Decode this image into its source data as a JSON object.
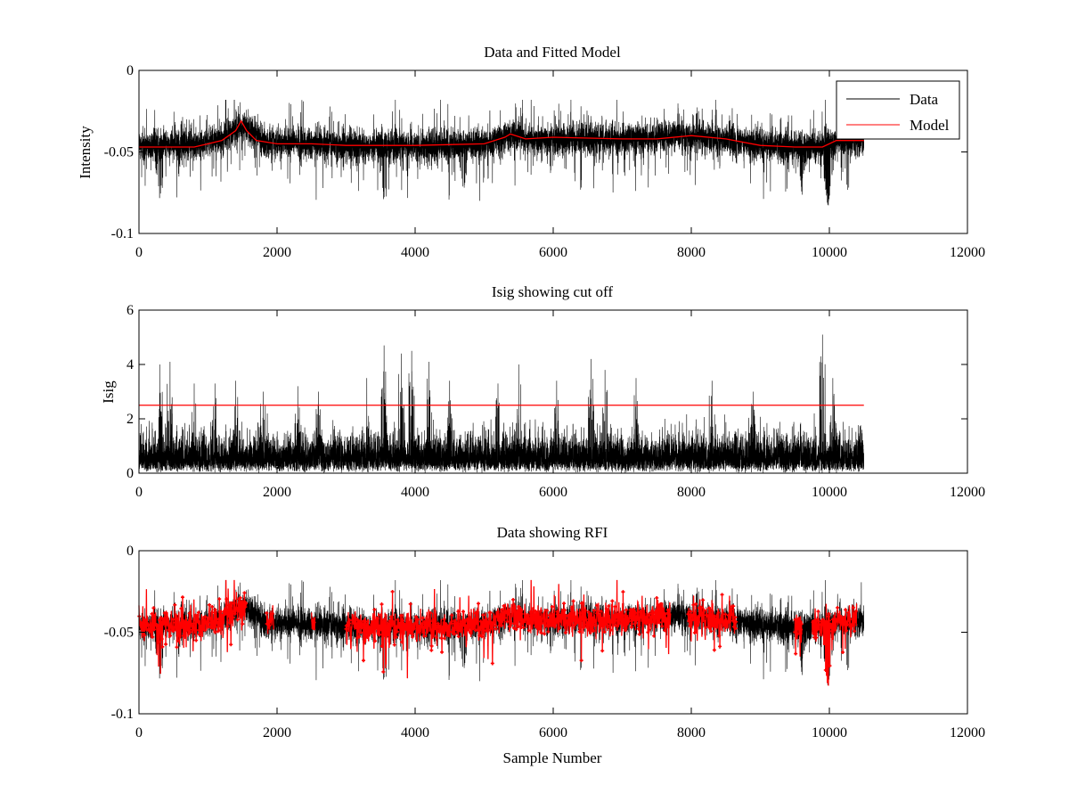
{
  "colors": {
    "data": "#000000",
    "model": "#ff0000",
    "rfi": "#ff0000",
    "axis": "#000000",
    "background": "#ffffff"
  },
  "chart_data": [
    {
      "type": "line",
      "title": "Data and Fitted Model",
      "xlabel": "",
      "ylabel": "Intensity",
      "xlim": [
        0,
        12000
      ],
      "ylim": [
        -0.1,
        0
      ],
      "xticks": [
        0,
        2000,
        4000,
        6000,
        8000,
        10000,
        12000
      ],
      "xtick_labels": [
        "0",
        "2000",
        "4000",
        "6000",
        "8000",
        "10000",
        "12000"
      ],
      "yticks": [
        -0.1,
        -0.05,
        0
      ],
      "ytick_labels": [
        "-0.1",
        "-0.05",
        "0"
      ],
      "legend": {
        "placement": "top-right",
        "entries": [
          {
            "name": "Data",
            "color": "#000000"
          },
          {
            "name": "Model",
            "color": "#ff0000"
          }
        ]
      },
      "series": [
        {
          "name": "Data",
          "kind": "noisy-trace",
          "color": "#000000",
          "n_samples": 10500,
          "baseline": [
            [
              0,
              -0.046
            ],
            [
              800,
              -0.046
            ],
            [
              1200,
              -0.042
            ],
            [
              1500,
              -0.033
            ],
            [
              1800,
              -0.044
            ],
            [
              2500,
              -0.045
            ],
            [
              3000,
              -0.046
            ],
            [
              4000,
              -0.047
            ],
            [
              5000,
              -0.045
            ],
            [
              5400,
              -0.039
            ],
            [
              5800,
              -0.042
            ],
            [
              7000,
              -0.042
            ],
            [
              8000,
              -0.04
            ],
            [
              9000,
              -0.046
            ],
            [
              9800,
              -0.047
            ],
            [
              10100,
              -0.043
            ],
            [
              10500,
              -0.043
            ]
          ],
          "spread": 0.006,
          "dips": [
            [
              300,
              -0.08
            ],
            [
              3550,
              -0.083
            ],
            [
              9980,
              -0.085
            ],
            [
              4700,
              -0.078
            ],
            [
              9600,
              -0.075
            ]
          ]
        },
        {
          "name": "Model",
          "kind": "line",
          "color": "#ff0000",
          "x": [
            0,
            800,
            1000,
            1200,
            1400,
            1480,
            1560,
            1700,
            2000,
            2500,
            3000,
            4000,
            5000,
            5300,
            5380,
            5600,
            6000,
            7000,
            7500,
            8000,
            8500,
            9000,
            9500,
            9900,
            10100,
            10500
          ],
          "y": [
            -0.047,
            -0.047,
            -0.045,
            -0.043,
            -0.037,
            -0.031,
            -0.037,
            -0.043,
            -0.045,
            -0.045,
            -0.046,
            -0.046,
            -0.045,
            -0.041,
            -0.039,
            -0.042,
            -0.041,
            -0.042,
            -0.042,
            -0.04,
            -0.042,
            -0.046,
            -0.047,
            -0.047,
            -0.043,
            -0.043
          ]
        }
      ]
    },
    {
      "type": "line",
      "title": "Isig showing cut off",
      "xlabel": "",
      "ylabel": "Isig",
      "xlim": [
        0,
        12000
      ],
      "ylim": [
        0,
        6
      ],
      "xticks": [
        0,
        2000,
        4000,
        6000,
        8000,
        10000,
        12000
      ],
      "xtick_labels": [
        "0",
        "2000",
        "4000",
        "6000",
        "8000",
        "10000",
        "12000"
      ],
      "yticks": [
        0,
        2,
        4,
        6
      ],
      "ytick_labels": [
        "0",
        "2",
        "4",
        "6"
      ],
      "series": [
        {
          "name": "Isig",
          "kind": "noisy-trace",
          "color": "#000000",
          "n_samples": 10500,
          "typical_max": 1.8,
          "peaks": [
            [
              300,
              4.0
            ],
            [
              450,
              4.1
            ],
            [
              800,
              3.3
            ],
            [
              1100,
              3.3
            ],
            [
              1400,
              3.4
            ],
            [
              1800,
              3.0
            ],
            [
              2300,
              3.2
            ],
            [
              2600,
              3.0
            ],
            [
              3300,
              3.5
            ],
            [
              3550,
              4.7
            ],
            [
              3800,
              4.4
            ],
            [
              3950,
              4.5
            ],
            [
              4200,
              4.1
            ],
            [
              4500,
              3.4
            ],
            [
              5200,
              3.3
            ],
            [
              5500,
              4.0
            ],
            [
              6050,
              3.4
            ],
            [
              6550,
              4.2
            ],
            [
              6750,
              3.8
            ],
            [
              7200,
              3.5
            ],
            [
              8300,
              3.4
            ],
            [
              8900,
              3.0
            ],
            [
              9900,
              5.1
            ],
            [
              10050,
              3.5
            ]
          ]
        },
        {
          "name": "cut off",
          "kind": "line",
          "color": "#ff0000",
          "x": [
            0,
            10500
          ],
          "y": [
            2.5,
            2.5
          ]
        }
      ]
    },
    {
      "type": "scatter",
      "title": "Data showing RFI",
      "xlabel": "Sample Number",
      "ylabel": "",
      "xlim": [
        0,
        12000
      ],
      "ylim": [
        -0.1,
        0
      ],
      "xticks": [
        0,
        2000,
        4000,
        6000,
        8000,
        10000,
        12000
      ],
      "xtick_labels": [
        "0",
        "2000",
        "4000",
        "6000",
        "8000",
        "10000",
        "12000"
      ],
      "yticks": [
        -0.1,
        -0.05,
        0
      ],
      "ytick_labels": [
        "-0.1",
        "-0.05",
        "0"
      ],
      "series": [
        {
          "name": "Data",
          "kind": "noisy-trace",
          "color": "#000000",
          "n_samples": 10500,
          "same_as_panel": 0
        },
        {
          "name": "RFI",
          "kind": "markers",
          "color": "#ff0000",
          "flagged_ranges": [
            [
              0,
              1550
            ],
            [
              1850,
              1950
            ],
            [
              2500,
              2550
            ],
            [
              3000,
              7700
            ],
            [
              7950,
              8650
            ],
            [
              9500,
              9600
            ],
            [
              9750,
              10400
            ]
          ]
        }
      ]
    }
  ]
}
